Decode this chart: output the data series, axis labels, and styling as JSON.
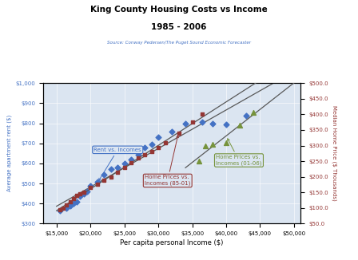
{
  "title_line1": "King County Housing Costs vs Income",
  "title_line2": "1985 - 2006",
  "subtitle": "Source: Conway Pedersen/The Puget Sound Economic Forecaster",
  "xlabel": "Per capita personal Income ($)",
  "ylabel_left": "Average apartment rent ($)",
  "ylabel_right": "Median Home Price ($ Thousands)",
  "rent_x": [
    15500,
    16500,
    17000,
    17500,
    18000,
    18500,
    19000,
    19500,
    20000,
    21000,
    22000,
    23000,
    24000,
    25000,
    26000,
    27000,
    28000,
    29000,
    30000,
    32000,
    34000,
    36500,
    38000,
    40000,
    43000
  ],
  "rent_y": [
    365,
    375,
    390,
    400,
    410,
    435,
    450,
    460,
    490,
    510,
    545,
    570,
    580,
    600,
    620,
    645,
    680,
    695,
    730,
    760,
    800,
    805,
    800,
    795,
    840
  ],
  "home_old_x": [
    15500,
    16000,
    16500,
    17000,
    17500,
    18000,
    18500,
    19000,
    20000,
    21000,
    22000,
    23000,
    24000,
    25000,
    26000,
    27000,
    28000,
    29000,
    30000,
    31000,
    33000,
    35000,
    36500
  ],
  "home_old_y": [
    95,
    100,
    110,
    120,
    130,
    140,
    145,
    150,
    165,
    175,
    190,
    200,
    215,
    230,
    245,
    260,
    270,
    280,
    295,
    310,
    340,
    375,
    400
  ],
  "home_new_x": [
    36000,
    37000,
    38000,
    40000,
    42000,
    44000
  ],
  "home_new_y": [
    250,
    300,
    305,
    310,
    365,
    405
  ],
  "xmin": 15000,
  "xmax": 50000,
  "xlim": [
    13000,
    51000
  ],
  "xticks": [
    15000,
    20000,
    25000,
    30000,
    35000,
    40000,
    45000,
    50000
  ],
  "yleft_min": 300,
  "yleft_max": 1000,
  "yleft_ticks": [
    300,
    400,
    500,
    600,
    700,
    800,
    900,
    1000
  ],
  "yright_min": 50,
  "yright_max": 500,
  "yright_ticks": [
    50,
    100,
    150,
    200,
    250,
    300,
    350,
    400,
    450,
    500
  ],
  "color_rent": "#4472C4",
  "color_home_old": "#943634",
  "color_home_new": "#76933C",
  "color_trendline": "#595959",
  "bg_color": "#FFFFFF",
  "plot_bg": "#DBE5F1",
  "annotation_rent": "Rent vs. Incomes",
  "annotation_home_old": "Home Prices vs.\nIncomes (85-01)",
  "annotation_home_new": "Home Prices vs.\nIncomes (01-06)"
}
